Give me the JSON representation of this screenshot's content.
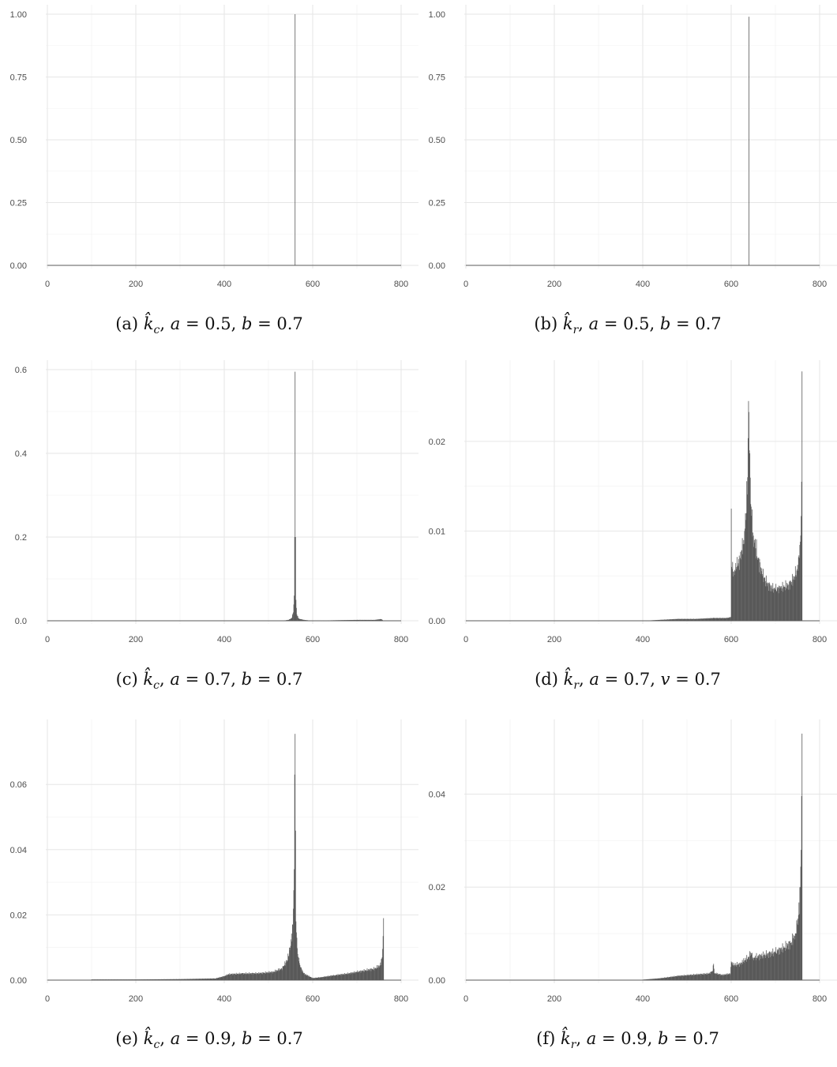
{
  "chart_data": [
    {
      "id": "a",
      "type": "bar",
      "caption": {
        "tag": "(a)",
        "var": "k̂",
        "sub": "c",
        "p1": "a",
        "v1": "0.5",
        "p2": "b",
        "v2": "0.7"
      },
      "xlim": [
        0,
        800
      ],
      "ylim": [
        0,
        1.0
      ],
      "xticks": [
        0,
        200,
        400,
        600,
        800
      ],
      "xtick_labels": [
        "0",
        "200",
        "400",
        "600",
        "800"
      ],
      "yticks": [
        0,
        0.25,
        0.5,
        0.75,
        1.0
      ],
      "ytick_labels": [
        "0.00",
        "0.25",
        "0.50",
        "0.75",
        "1.00"
      ],
      "grid": true,
      "baseline": [
        0,
        800
      ],
      "points": [
        [
          560,
          1.0
        ]
      ],
      "plateaus": []
    },
    {
      "id": "b",
      "type": "bar",
      "caption": {
        "tag": "(b)",
        "var": "k̂",
        "sub": "r",
        "p1": "a",
        "v1": "0.5",
        "p2": "b",
        "v2": "0.7"
      },
      "xlim": [
        0,
        800
      ],
      "ylim": [
        0,
        1.0
      ],
      "xticks": [
        0,
        200,
        400,
        600,
        800
      ],
      "xtick_labels": [
        "0",
        "200",
        "400",
        "600",
        "800"
      ],
      "yticks": [
        0,
        0.25,
        0.5,
        0.75,
        1.0
      ],
      "ytick_labels": [
        "0.00",
        "0.25",
        "0.50",
        "0.75",
        "1.00"
      ],
      "grid": true,
      "baseline": [
        0,
        800
      ],
      "points": [
        [
          640,
          0.99
        ]
      ],
      "plateaus": []
    },
    {
      "id": "c",
      "type": "bar",
      "caption": {
        "tag": "(c)",
        "var": "k̂",
        "sub": "c",
        "p1": "a",
        "v1": "0.7",
        "p2": "b",
        "v2": "0.7"
      },
      "xlim": [
        0,
        800
      ],
      "ylim": [
        0,
        0.6
      ],
      "xticks": [
        0,
        200,
        400,
        600,
        800
      ],
      "xtick_labels": [
        "0",
        "200",
        "400",
        "600",
        "800"
      ],
      "yticks": [
        0,
        0.2,
        0.4,
        0.6
      ],
      "ytick_labels": [
        "0.0",
        "0.2",
        "0.4",
        "0.6"
      ],
      "grid": true,
      "baseline": [
        0,
        800
      ],
      "points": [
        [
          530,
          0.0
        ],
        [
          545,
          0.002
        ],
        [
          552,
          0.006
        ],
        [
          556,
          0.02
        ],
        [
          558,
          0.06
        ],
        [
          559,
          0.2
        ],
        [
          560,
          0.595
        ],
        [
          561,
          0.2
        ],
        [
          562,
          0.05
        ],
        [
          564,
          0.015
        ],
        [
          568,
          0.005
        ],
        [
          580,
          0.002
        ],
        [
          600,
          0.0
        ],
        [
          640,
          0.001
        ],
        [
          700,
          0.002
        ],
        [
          740,
          0.002
        ],
        [
          755,
          0.004
        ],
        [
          760,
          0.0
        ]
      ],
      "plateaus": []
    },
    {
      "id": "d",
      "type": "bar",
      "caption": {
        "tag": "(d)",
        "var": "k̂",
        "sub": "r",
        "p1": "a",
        "v1": "0.7",
        "p2": "v",
        "v2": "0.7"
      },
      "xlim": [
        0,
        800
      ],
      "ylim": [
        0,
        0.028
      ],
      "xticks": [
        0,
        200,
        400,
        600,
        800
      ],
      "xtick_labels": [
        "0",
        "200",
        "400",
        "600",
        "800"
      ],
      "yticks": [
        0,
        0.01,
        0.02
      ],
      "ytick_labels": [
        "0.00",
        "0.01",
        "0.02"
      ],
      "grid": true,
      "baseline": [
        0,
        800
      ],
      "points": [
        [
          400,
          0.0
        ],
        [
          440,
          0.0001
        ],
        [
          480,
          0.0002
        ],
        [
          520,
          0.0002
        ],
        [
          560,
          0.0003
        ],
        [
          590,
          0.0003
        ],
        [
          599,
          0.0004
        ],
        [
          600,
          0.0125
        ],
        [
          601,
          0.006
        ],
        [
          606,
          0.0055
        ],
        [
          612,
          0.006
        ],
        [
          620,
          0.007
        ],
        [
          628,
          0.009
        ],
        [
          634,
          0.012
        ],
        [
          637,
          0.016
        ],
        [
          639,
          0.0245
        ],
        [
          641,
          0.019
        ],
        [
          644,
          0.013
        ],
        [
          650,
          0.0095
        ],
        [
          660,
          0.007
        ],
        [
          670,
          0.0052
        ],
        [
          680,
          0.0042
        ],
        [
          690,
          0.0037
        ],
        [
          700,
          0.0035
        ],
        [
          710,
          0.0036
        ],
        [
          720,
          0.0038
        ],
        [
          730,
          0.004
        ],
        [
          740,
          0.0046
        ],
        [
          748,
          0.0056
        ],
        [
          754,
          0.007
        ],
        [
          757,
          0.0095
        ],
        [
          759,
          0.0155
        ],
        [
          760,
          0.0278
        ],
        [
          761,
          0.0
        ]
      ],
      "plateaus": []
    },
    {
      "id": "e",
      "type": "bar",
      "caption": {
        "tag": "(e)",
        "var": "k̂",
        "sub": "c",
        "p1": "a",
        "v1": "0.9",
        "p2": "b",
        "v2": "0.7"
      },
      "xlim": [
        0,
        800
      ],
      "ylim": [
        0,
        0.077
      ],
      "xticks": [
        0,
        200,
        400,
        600,
        800
      ],
      "xtick_labels": [
        "0",
        "200",
        "400",
        "600",
        "800"
      ],
      "yticks": [
        0,
        0.02,
        0.04,
        0.06
      ],
      "ytick_labels": [
        "0.00",
        "0.02",
        "0.04",
        "0.06"
      ],
      "grid": true,
      "baseline": [
        0,
        800
      ],
      "points": [
        [
          100,
          0.0002
        ],
        [
          200,
          0.0002
        ],
        [
          300,
          0.0003
        ],
        [
          380,
          0.0005
        ],
        [
          400,
          0.0012
        ],
        [
          410,
          0.0018
        ],
        [
          440,
          0.002
        ],
        [
          480,
          0.0021
        ],
        [
          510,
          0.0025
        ],
        [
          530,
          0.0035
        ],
        [
          542,
          0.006
        ],
        [
          550,
          0.0105
        ],
        [
          555,
          0.017
        ],
        [
          558,
          0.034
        ],
        [
          560,
          0.0755
        ],
        [
          562,
          0.018
        ],
        [
          566,
          0.008
        ],
        [
          572,
          0.004
        ],
        [
          580,
          0.002
        ],
        [
          600,
          0.0006
        ],
        [
          620,
          0.0009
        ],
        [
          650,
          0.0015
        ],
        [
          680,
          0.002
        ],
        [
          700,
          0.0025
        ],
        [
          720,
          0.003
        ],
        [
          740,
          0.0035
        ],
        [
          752,
          0.0045
        ],
        [
          757,
          0.007
        ],
        [
          759,
          0.0135
        ],
        [
          760,
          0.019
        ],
        [
          761,
          0.0
        ]
      ],
      "plateaus": []
    },
    {
      "id": "f",
      "type": "bar",
      "caption": {
        "tag": "(f)",
        "var": "k̂",
        "sub": "r",
        "p1": "a",
        "v1": "0.9",
        "p2": "b",
        "v2": "0.7"
      },
      "xlim": [
        0,
        800
      ],
      "ylim": [
        0,
        0.054
      ],
      "xticks": [
        0,
        200,
        400,
        600,
        800
      ],
      "xtick_labels": [
        "0",
        "200",
        "400",
        "600",
        "800"
      ],
      "yticks": [
        0,
        0.02,
        0.04
      ],
      "ytick_labels": [
        "0.00",
        "0.02",
        "0.04"
      ],
      "grid": true,
      "baseline": [
        0,
        800
      ],
      "points": [
        [
          400,
          0.0001
        ],
        [
          440,
          0.0004
        ],
        [
          480,
          0.0009
        ],
        [
          520,
          0.0012
        ],
        [
          550,
          0.0014
        ],
        [
          558,
          0.002
        ],
        [
          560,
          0.0035
        ],
        [
          562,
          0.0015
        ],
        [
          580,
          0.0011
        ],
        [
          598,
          0.0014
        ],
        [
          600,
          0.004
        ],
        [
          604,
          0.0032
        ],
        [
          620,
          0.0035
        ],
        [
          640,
          0.005
        ],
        [
          643,
          0.006
        ],
        [
          650,
          0.0048
        ],
        [
          680,
          0.0055
        ],
        [
          700,
          0.006
        ],
        [
          720,
          0.007
        ],
        [
          735,
          0.008
        ],
        [
          745,
          0.01
        ],
        [
          752,
          0.014
        ],
        [
          756,
          0.02
        ],
        [
          758,
          0.028
        ],
        [
          760,
          0.053
        ],
        [
          761,
          0.0
        ]
      ],
      "plateaus": []
    }
  ]
}
